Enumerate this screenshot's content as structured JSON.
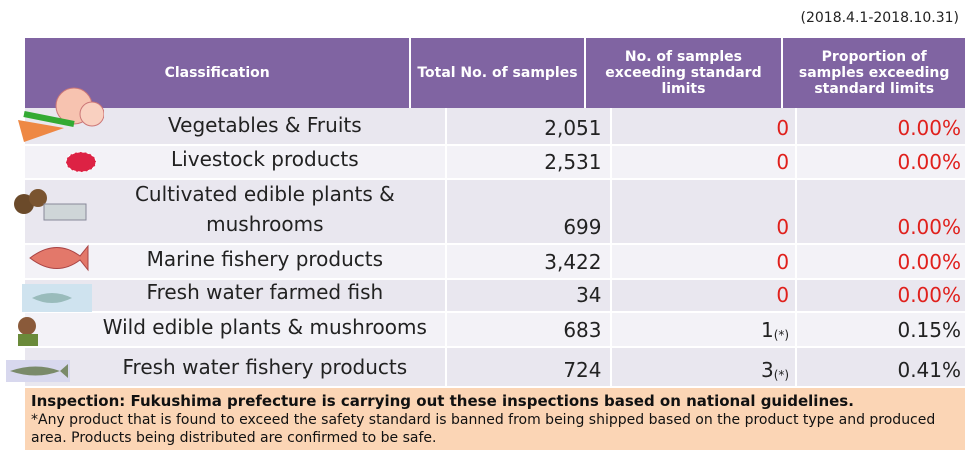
{
  "period": "(2018.4.1-2018.10.31)",
  "table": {
    "header": [
      "Classification",
      "Total No. of samples",
      "No. of samples exceeding standard limits",
      "Proportion of samples exceeding standard limits"
    ],
    "rows": [
      [
        "Vegetables & Fruits",
        "2,051",
        "0",
        "0.00%"
      ],
      [
        "Livestock products",
        "2,531",
        "0",
        "0.00%"
      ],
      [
        "Cultivated edible plants & mushrooms",
        "699",
        "0",
        "0.00%"
      ],
      [
        "Marine fishery products",
        "3,422",
        "0",
        "0.00%"
      ],
      [
        "Fresh water farmed fish",
        "34",
        "0",
        "0.00%"
      ],
      [
        "Wild edible plants & mushrooms",
        "683",
        "1",
        "0.15%"
      ],
      [
        "Fresh water fishery products",
        "724",
        "3",
        "0.41%"
      ]
    ],
    "notes": {
      "5": "(*)",
      "6": "(*)"
    }
  },
  "footer": [
    "Inspection: Fukushima prefecture is carrying out these inspections based on national guidelines.",
    "*Any product that is found to exceed the safety standard is banned from being shipped based on the product type and produced area. Products being distributed are confirmed to be safe."
  ]
}
